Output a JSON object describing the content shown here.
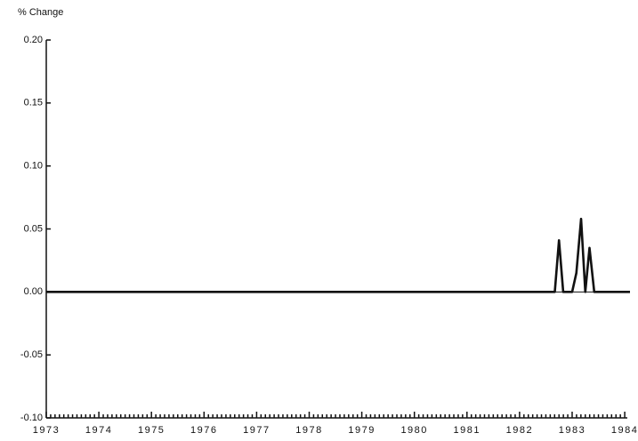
{
  "chart_data": {
    "type": "line",
    "y_label": "% Change",
    "x": [
      1973,
      1982.67,
      1982.75,
      1982.83,
      1983.0,
      1983.08,
      1983.17,
      1983.25,
      1983.33,
      1983.42,
      1984.1
    ],
    "series": [
      {
        "color": "#111111",
        "values": [
          0,
          0,
          0.041,
          0,
          0,
          0.015,
          0.058,
          0,
          0.035,
          0,
          0
        ]
      }
    ],
    "xlim": [
      1973,
      1984.1
    ],
    "xticks": [
      1973,
      1974,
      1975,
      1976,
      1977,
      1978,
      1979,
      1980,
      1981,
      1982,
      1983,
      1984
    ],
    "ylim": [
      -0.1,
      0.2
    ],
    "yticks": [
      {
        "value": -0.1,
        "label": "-0.10"
      },
      {
        "value": -0.05,
        "label": "-0.05"
      },
      {
        "value": 0,
        "label": "0.00"
      },
      {
        "value": 0.05,
        "label": "0.05"
      },
      {
        "value": 0.1,
        "label": "0.10"
      },
      {
        "value": 0.15,
        "label": "0.15"
      },
      {
        "value": 0.2,
        "label": "0.20"
      }
    ]
  }
}
